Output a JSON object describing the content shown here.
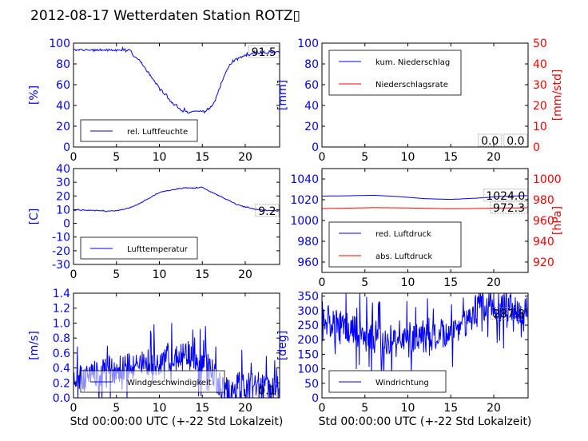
{
  "figure": {
    "title": "2012-08-17 Wetterdaten Station ROTZ▯"
  },
  "colors": {
    "blue": "#0000ff",
    "red": "#ff0000",
    "black": "#000000"
  },
  "chart_data": [
    {
      "id": "humidity",
      "type": "line",
      "ylabel": "[%]",
      "xlim": [
        0,
        24
      ],
      "ylim": [
        0,
        100
      ],
      "xticks": [
        0,
        5,
        10,
        15,
        20
      ],
      "yticks": [
        0,
        20,
        40,
        60,
        80,
        100
      ],
      "last_value_label": "91.5",
      "legend": {
        "placement": "lower-left",
        "entries": [
          {
            "label": "rel. Luftfeuchte",
            "color": "#0000ff"
          }
        ]
      },
      "series": [
        {
          "name": "rel. Luftfeuchte",
          "axis": "left",
          "color": "#0000ff",
          "noise": 1.5,
          "x": [
            0,
            1,
            3,
            5,
            6.5,
            7,
            7.5,
            8,
            8.5,
            9,
            9.5,
            10,
            10.5,
            11,
            11.5,
            12,
            12.5,
            13,
            13.5,
            14,
            14.5,
            15,
            15.5,
            16,
            16.5,
            17,
            17.5,
            18,
            18.5,
            19,
            20,
            21,
            22,
            23,
            24
          ],
          "y": [
            93.5,
            93.5,
            93.3,
            93.5,
            93.6,
            88,
            85,
            80,
            74,
            68,
            62,
            57,
            52,
            47,
            42,
            39,
            36,
            35,
            33,
            34,
            35,
            34,
            35,
            38,
            45,
            56,
            67,
            77,
            82,
            85,
            88,
            90,
            90.5,
            91,
            91.5
          ]
        }
      ]
    },
    {
      "id": "precipitation",
      "type": "line",
      "ylabel": "[mm]",
      "ylabel_right": "[mm/std]",
      "xlim": [
        0,
        24
      ],
      "ylim": [
        0,
        100
      ],
      "ylim_right": [
        0,
        50
      ],
      "xticks": [
        0,
        5,
        10,
        15,
        20
      ],
      "yticks": [
        0,
        20,
        40,
        60,
        80,
        100
      ],
      "yticks_right": [
        0,
        10,
        20,
        30,
        40,
        50
      ],
      "last_value_label": "0.0",
      "last_value_label_right": "0.0",
      "legend": {
        "placement": "upper-left",
        "entries": [
          {
            "label": "kum. Niederschlag",
            "color": "#0000ff"
          },
          {
            "label": "Niederschlagsrate",
            "color": "#ff0000"
          }
        ]
      },
      "series": [
        {
          "name": "kum. Niederschlag",
          "axis": "left",
          "color": "#0000ff",
          "noise": 0,
          "x": [
            0,
            24
          ],
          "y": [
            0,
            0
          ]
        },
        {
          "name": "Niederschlagsrate",
          "axis": "right",
          "color": "#ff0000",
          "noise": 0,
          "x": [
            0,
            24
          ],
          "y": [
            0,
            0
          ]
        }
      ]
    },
    {
      "id": "temperature",
      "type": "line",
      "ylabel": "[C]",
      "xlim": [
        0,
        24
      ],
      "ylim": [
        -30,
        40
      ],
      "xticks": [
        0,
        5,
        10,
        15,
        20
      ],
      "yticks": [
        -30,
        -20,
        -10,
        0,
        10,
        20,
        30,
        40
      ],
      "last_value_label": "9.2",
      "legend": {
        "placement": "lower-left",
        "entries": [
          {
            "label": "Lufttemperatur",
            "color": "#0000ff"
          }
        ]
      },
      "series": [
        {
          "name": "Lufttemperatur",
          "axis": "left",
          "color": "#0000ff",
          "noise": 0.4,
          "x": [
            0,
            1,
            2,
            3,
            4,
            5,
            6,
            7,
            8,
            9,
            10,
            11,
            12,
            13,
            14,
            15,
            16,
            17,
            18,
            19,
            20,
            21,
            22,
            23,
            24
          ],
          "y": [
            9.8,
            9.7,
            9.6,
            9.4,
            8.9,
            9.2,
            10.5,
            12.5,
            15.5,
            19,
            22.5,
            24,
            25,
            26,
            25.5,
            26.5,
            23,
            20,
            17,
            14,
            12,
            10.5,
            9.5,
            9.3,
            9.2
          ]
        }
      ]
    },
    {
      "id": "pressure",
      "type": "line",
      "ylabel_right": "[hPa]",
      "xlim": [
        0,
        24
      ],
      "ylim": [
        950,
        1050
      ],
      "ylim_right": [
        910,
        1010
      ],
      "xticks": [
        0,
        5,
        10,
        15,
        20
      ],
      "yticks": [
        960,
        980,
        1000,
        1020,
        1040
      ],
      "yticks_right": [
        920,
        940,
        960,
        980,
        1000
      ],
      "last_value_label": "1024.0",
      "last_value_label_right": "972.3",
      "legend": {
        "placement": "lower-left",
        "entries": [
          {
            "label": "red. Luftdruck",
            "color": "#0000ff"
          },
          {
            "label": "abs. Luftdruck",
            "color": "#ff0000"
          }
        ]
      },
      "series": [
        {
          "name": "red. Luftdruck",
          "axis": "left",
          "color": "#0000ff",
          "noise": 0,
          "x": [
            0,
            3,
            6,
            9,
            12,
            15,
            18,
            21,
            24
          ],
          "y": [
            1023.5,
            1023.8,
            1024.3,
            1023,
            1021,
            1020.3,
            1021.5,
            1023.2,
            1024
          ]
        },
        {
          "name": "abs. Luftdruck",
          "axis": "right",
          "color": "#ff0000",
          "noise": 0,
          "x": [
            0,
            3,
            6,
            9,
            12,
            15,
            18,
            21,
            24
          ],
          "y": [
            971.5,
            971.9,
            972.4,
            972.2,
            971.8,
            971.3,
            971.6,
            972.0,
            972.3
          ]
        }
      ]
    },
    {
      "id": "wind_speed",
      "type": "line",
      "ylabel": "[m/s]",
      "xlabel": "Std 00:00:00 UTC (+-22 Std Lokalzeit)",
      "xlim": [
        0,
        24
      ],
      "ylim": [
        0,
        1.4
      ],
      "xticks": [
        0,
        5,
        10,
        15,
        20
      ],
      "yticks": [
        0.0,
        0.2,
        0.4,
        0.6,
        0.8,
        1.0,
        1.2,
        1.4
      ],
      "ytick_decimals": 1,
      "last_value_label": "0.1",
      "legend": {
        "placement": "lower-left",
        "entries": [
          {
            "label": "Windgeschwindigkeit",
            "color": "#0000ff"
          }
        ]
      },
      "series": [
        {
          "name": "Windgeschwindigkeit",
          "axis": "left",
          "color": "#0000ff",
          "noise": 0.32,
          "samples": 420,
          "x": [
            0,
            2,
            4,
            6,
            8,
            10,
            12,
            14,
            15,
            16,
            17,
            18,
            20,
            22,
            24
          ],
          "y": [
            0.3,
            0.3,
            0.35,
            0.4,
            0.45,
            0.5,
            0.55,
            0.55,
            0.5,
            0.4,
            0.2,
            0.12,
            0.15,
            0.15,
            0.1
          ]
        }
      ]
    },
    {
      "id": "wind_direction",
      "type": "line",
      "ylabel": "[deg]",
      "xlabel": "Std 00:00:00 UTC (+-22 Std Lokalzeit)",
      "xlim": [
        0,
        24
      ],
      "ylim": [
        0,
        360
      ],
      "xticks": [
        0,
        5,
        10,
        15,
        20
      ],
      "yticks": [
        0,
        50,
        100,
        150,
        200,
        250,
        300,
        350
      ],
      "last_value_label": "287.8",
      "legend": {
        "placement": "lower-left",
        "entries": [
          {
            "label": "Windrichtung",
            "color": "#0000ff"
          }
        ]
      },
      "series": [
        {
          "name": "Windrichtung",
          "axis": "left",
          "color": "#0000ff",
          "noise": 90,
          "samples": 420,
          "x": [
            0,
            2,
            4,
            6,
            8,
            10,
            12,
            14,
            16,
            17,
            18,
            19,
            20,
            22,
            24
          ],
          "y": [
            280,
            250,
            230,
            200,
            180,
            190,
            200,
            220,
            240,
            270,
            310,
            315,
            310,
            305,
            290
          ]
        }
      ]
    }
  ]
}
